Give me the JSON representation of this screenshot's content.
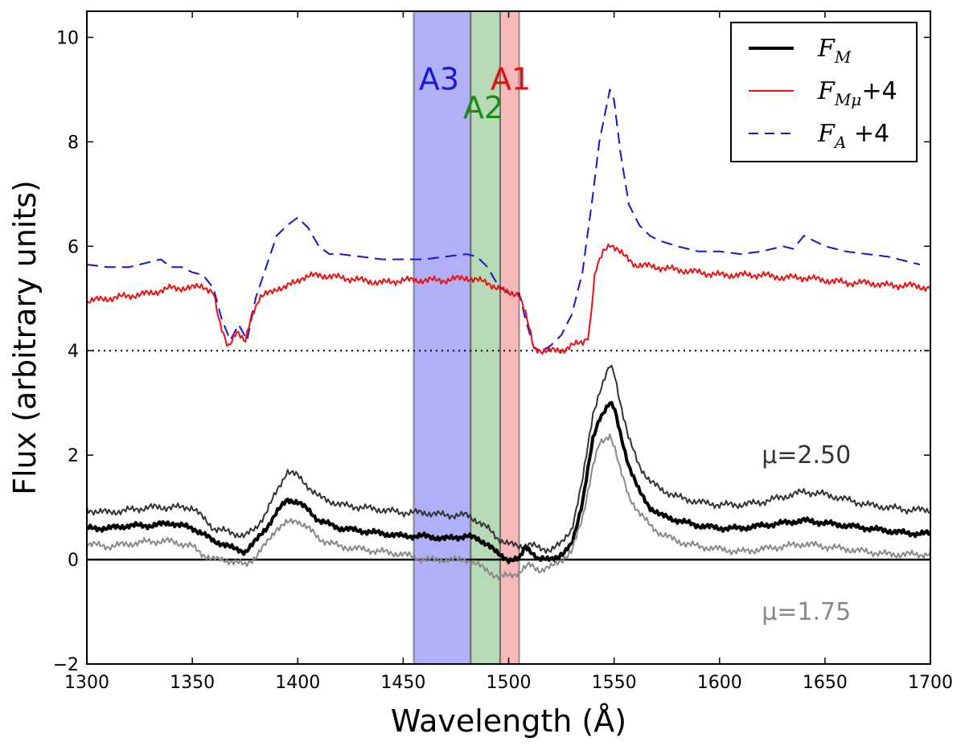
{
  "chart_data": {
    "type": "line",
    "xlabel": "Wavelength (Å)",
    "ylabel": "Flux (arbitrary units)",
    "xlim": [
      1300,
      1700
    ],
    "ylim": [
      -2,
      10.5
    ],
    "xticks": [
      1300,
      1350,
      1400,
      1450,
      1500,
      1550,
      1600,
      1650,
      1700
    ],
    "xtick_labels": [
      "1300",
      "1350",
      "1400",
      "1450",
      "1500",
      "1550",
      "1600",
      "1650",
      "1700"
    ],
    "yticks": [
      -2,
      0,
      2,
      4,
      6,
      8,
      10
    ],
    "ytick_labels": [
      "−2",
      "0",
      "2",
      "4",
      "6",
      "8",
      "10"
    ],
    "bands": [
      {
        "name": "A3",
        "x0": 1455,
        "x1": 1482,
        "color": "#7b7bf4",
        "label_color": "#1a1ad6"
      },
      {
        "name": "A2",
        "x0": 1482,
        "x1": 1496,
        "color": "#86c086",
        "label_color": "#1a8a1a"
      },
      {
        "name": "A1",
        "x0": 1496,
        "x1": 1505,
        "color": "#f38a8a",
        "label_color": "#e01010"
      }
    ],
    "hlines": [
      {
        "y": 4,
        "style": "dotted",
        "color": "#000000"
      },
      {
        "y": 0,
        "style": "solid",
        "color": "#000000"
      }
    ],
    "series": [
      {
        "name": "F_A +4",
        "color": "#1414d2",
        "dash": "dashed",
        "width": 2,
        "x": [
          1300,
          1310,
          1320,
          1330,
          1335,
          1340,
          1345,
          1350,
          1355,
          1360,
          1364,
          1368,
          1372,
          1376,
          1380,
          1385,
          1390,
          1395,
          1400,
          1405,
          1410,
          1415,
          1420,
          1430,
          1440,
          1450,
          1460,
          1470,
          1480,
          1485,
          1490,
          1495,
          1500,
          1505,
          1508,
          1512,
          1516,
          1520,
          1525,
          1530,
          1535,
          1540,
          1543,
          1546,
          1548,
          1550,
          1553,
          1557,
          1562,
          1567,
          1572,
          1580,
          1590,
          1600,
          1610,
          1620,
          1630,
          1635,
          1640,
          1650,
          1660,
          1670,
          1680,
          1690,
          1695
        ],
        "y": [
          5.65,
          5.6,
          5.6,
          5.7,
          5.75,
          5.6,
          5.6,
          5.5,
          5.45,
          5.2,
          4.6,
          4.2,
          4.5,
          4.2,
          5.0,
          5.6,
          6.2,
          6.4,
          6.55,
          6.35,
          6.0,
          5.85,
          5.85,
          5.8,
          5.75,
          5.75,
          5.75,
          5.8,
          5.85,
          5.8,
          5.6,
          5.25,
          5.1,
          5.1,
          4.6,
          4.05,
          4.0,
          4.1,
          4.3,
          4.7,
          5.5,
          7.0,
          8.0,
          8.6,
          9.0,
          8.8,
          7.8,
          6.8,
          6.4,
          6.2,
          6.1,
          6.0,
          5.9,
          5.9,
          5.85,
          5.9,
          6.0,
          5.95,
          6.2,
          6.0,
          5.9,
          5.85,
          5.8,
          5.7,
          5.65
        ]
      },
      {
        "name": "F_Mμ +4",
        "color": "#ee1010",
        "dash": "solid",
        "width": 2,
        "x": [
          1300,
          1310,
          1320,
          1330,
          1340,
          1350,
          1355,
          1360,
          1363,
          1367,
          1371,
          1375,
          1378,
          1382,
          1386,
          1390,
          1394,
          1398,
          1402,
          1410,
          1420,
          1430,
          1440,
          1450,
          1460,
          1470,
          1480,
          1485,
          1490,
          1495,
          1500,
          1505,
          1508,
          1512,
          1516,
          1520,
          1525,
          1530,
          1535,
          1538,
          1541,
          1545,
          1548,
          1550,
          1555,
          1560,
          1570,
          1580,
          1590,
          1600,
          1610,
          1620,
          1630,
          1640,
          1650,
          1660,
          1670,
          1680,
          1690,
          1700
        ],
        "y": [
          4.95,
          5.0,
          5.05,
          5.1,
          5.2,
          5.2,
          5.25,
          5.1,
          4.5,
          4.1,
          4.35,
          4.15,
          4.7,
          5.0,
          5.1,
          5.2,
          5.2,
          5.3,
          5.4,
          5.45,
          5.4,
          5.35,
          5.3,
          5.35,
          5.35,
          5.35,
          5.4,
          5.35,
          5.3,
          5.2,
          5.1,
          5.1,
          4.7,
          4.05,
          4.0,
          4.0,
          4.0,
          4.1,
          4.15,
          4.3,
          5.5,
          5.9,
          6.05,
          6.0,
          5.8,
          5.65,
          5.6,
          5.55,
          5.5,
          5.45,
          5.45,
          5.45,
          5.4,
          5.4,
          5.35,
          5.3,
          5.3,
          5.25,
          5.25,
          5.2
        ]
      },
      {
        "name": "μ=2.50",
        "color": "#333333",
        "dash": "solid",
        "width": 2,
        "x": [
          1300,
          1310,
          1320,
          1330,
          1340,
          1350,
          1355,
          1360,
          1365,
          1370,
          1375,
          1380,
          1385,
          1390,
          1395,
          1400,
          1405,
          1410,
          1420,
          1430,
          1440,
          1450,
          1460,
          1470,
          1480,
          1485,
          1490,
          1495,
          1500,
          1505,
          1510,
          1515,
          1520,
          1525,
          1530,
          1535,
          1540,
          1543,
          1546,
          1548,
          1550,
          1553,
          1557,
          1562,
          1567,
          1572,
          1580,
          1590,
          1600,
          1610,
          1620,
          1630,
          1640,
          1650,
          1660,
          1670,
          1680,
          1690,
          1700
        ],
        "y": [
          0.95,
          0.9,
          0.95,
          1.0,
          1.0,
          1.0,
          0.8,
          0.6,
          0.55,
          0.5,
          0.45,
          0.6,
          0.9,
          1.3,
          1.7,
          1.6,
          1.4,
          1.2,
          1.05,
          1.0,
          0.95,
          0.9,
          0.9,
          0.85,
          0.85,
          0.75,
          0.6,
          0.4,
          0.3,
          0.25,
          0.3,
          0.2,
          0.2,
          0.3,
          0.6,
          1.5,
          2.8,
          3.2,
          3.5,
          3.7,
          3.6,
          3.0,
          2.3,
          1.8,
          1.5,
          1.35,
          1.2,
          1.1,
          1.05,
          1.05,
          1.1,
          1.2,
          1.3,
          1.25,
          1.15,
          1.05,
          1.0,
          0.95,
          0.95
        ]
      },
      {
        "name": "F_M",
        "color": "#000000",
        "dash": "solid",
        "width": 4,
        "x": [
          1300,
          1310,
          1320,
          1330,
          1340,
          1350,
          1355,
          1360,
          1365,
          1370,
          1375,
          1380,
          1385,
          1390,
          1395,
          1400,
          1405,
          1410,
          1420,
          1430,
          1440,
          1450,
          1460,
          1470,
          1480,
          1485,
          1490,
          1495,
          1500,
          1505,
          1508,
          1511,
          1514,
          1518,
          1522,
          1526,
          1530,
          1535,
          1540,
          1543,
          1546,
          1548,
          1550,
          1553,
          1557,
          1562,
          1567,
          1572,
          1580,
          1590,
          1600,
          1610,
          1620,
          1630,
          1640,
          1650,
          1660,
          1670,
          1680,
          1690,
          1700
        ],
        "y": [
          0.6,
          0.6,
          0.65,
          0.65,
          0.7,
          0.6,
          0.5,
          0.35,
          0.3,
          0.2,
          0.15,
          0.35,
          0.6,
          0.9,
          1.15,
          1.1,
          0.95,
          0.75,
          0.6,
          0.55,
          0.5,
          0.45,
          0.45,
          0.4,
          0.45,
          0.4,
          0.3,
          0.1,
          0.0,
          0.0,
          0.25,
          0.15,
          0.0,
          0.0,
          0.05,
          0.1,
          0.3,
          1.1,
          2.3,
          2.7,
          2.9,
          3.0,
          2.9,
          2.4,
          1.8,
          1.3,
          1.0,
          0.85,
          0.75,
          0.65,
          0.6,
          0.6,
          0.65,
          0.7,
          0.75,
          0.7,
          0.65,
          0.6,
          0.55,
          0.5,
          0.5
        ]
      },
      {
        "name": "μ=1.75",
        "color": "#888888",
        "dash": "solid",
        "width": 2,
        "x": [
          1300,
          1310,
          1320,
          1330,
          1340,
          1350,
          1355,
          1360,
          1365,
          1370,
          1375,
          1380,
          1385,
          1390,
          1395,
          1400,
          1405,
          1410,
          1420,
          1430,
          1440,
          1450,
          1460,
          1470,
          1480,
          1485,
          1490,
          1495,
          1500,
          1505,
          1510,
          1515,
          1520,
          1525,
          1530,
          1535,
          1540,
          1543,
          1546,
          1548,
          1550,
          1553,
          1557,
          1562,
          1567,
          1572,
          1580,
          1590,
          1600,
          1610,
          1620,
          1630,
          1640,
          1650,
          1660,
          1670,
          1680,
          1690,
          1700
        ],
        "y": [
          0.3,
          0.25,
          0.3,
          0.35,
          0.35,
          0.25,
          0.1,
          0.0,
          0.0,
          -0.05,
          -0.1,
          0.05,
          0.3,
          0.6,
          0.7,
          0.75,
          0.6,
          0.4,
          0.25,
          0.2,
          0.15,
          0.1,
          0.0,
          0.0,
          0.0,
          -0.1,
          -0.2,
          -0.35,
          -0.3,
          -0.25,
          -0.1,
          -0.2,
          -0.15,
          0.0,
          0.15,
          0.8,
          1.8,
          2.2,
          2.3,
          2.4,
          2.2,
          1.7,
          1.2,
          0.9,
          0.65,
          0.5,
          0.35,
          0.25,
          0.2,
          0.15,
          0.2,
          0.25,
          0.3,
          0.25,
          0.2,
          0.15,
          0.1,
          0.1,
          0.1
        ]
      }
    ],
    "legend": {
      "placement": "top-right",
      "entries": [
        {
          "symbol": "F",
          "sub": "M",
          "suffix": "",
          "color": "#000000",
          "dash": "solid",
          "width": 4
        },
        {
          "symbol": "F",
          "sub": "Mμ",
          "suffix": "+4",
          "color": "#ee1010",
          "dash": "solid",
          "width": 2
        },
        {
          "symbol": "F",
          "sub": "A",
          "suffix": " +4",
          "color": "#1414d2",
          "dash": "dashed",
          "width": 2
        }
      ]
    },
    "annotations": [
      {
        "text": "μ=2.50",
        "x": 1620,
        "y": 2.0,
        "color": "#333333"
      },
      {
        "text": "μ=1.75",
        "x": 1620,
        "y": -1.0,
        "color": "#888888"
      }
    ]
  }
}
